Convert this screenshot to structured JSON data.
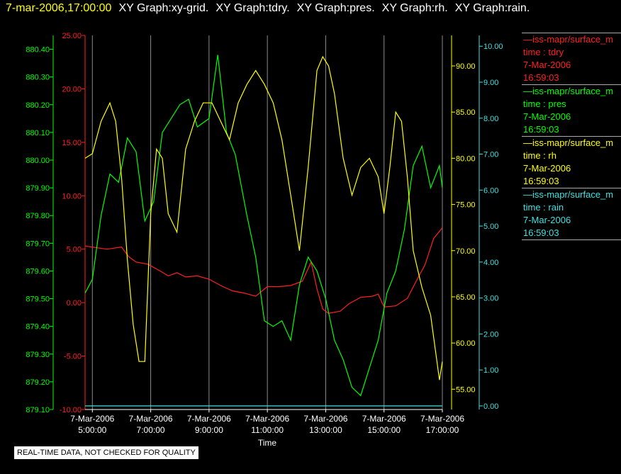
{
  "header": {
    "timestamp": "7-mar-2006,17:00:00",
    "graphs": [
      "XY Graph:xy-grid.",
      "XY Graph:tdry.",
      "XY Graph:pres.",
      "XY Graph:rh.",
      "XY Graph:rain."
    ]
  },
  "legend": [
    {
      "name": "—iss-mapr/surface_m",
      "var": "time : tdry",
      "date": "7-Mar-2006",
      "time": "16:59:03",
      "color": "#ff2020"
    },
    {
      "name": "—iss-mapr/surface_m",
      "var": "time : pres",
      "date": "7-Mar-2006",
      "time": "16:59:03",
      "color": "#00ff00"
    },
    {
      "name": "—iss-mapr/surface_m",
      "var": "time : rh",
      "date": "7-Mar-2006",
      "time": "16:59:03",
      "color": "#ffff00"
    },
    {
      "name": "—iss-mapr/surface_m",
      "var": "time : rain",
      "date": "7-Mar-2006",
      "time": "16:59:03",
      "color": "#40e0e0"
    }
  ],
  "notice": "REAL-TIME DATA, NOT CHECKED FOR QUALITY",
  "chart_data": {
    "type": "line",
    "xlabel": "Time",
    "x_range_hours": [
      4.75,
      17.0
    ],
    "x_ticks": [
      {
        "hour": 5,
        "date": "7-Mar-2006",
        "time": "5:00:00"
      },
      {
        "hour": 7,
        "date": "7-Mar-2006",
        "time": "7:00:00"
      },
      {
        "hour": 9,
        "date": "7-Mar-2006",
        "time": "9:00:00"
      },
      {
        "hour": 11,
        "date": "7-Mar-2006",
        "time": "11:00:00"
      },
      {
        "hour": 13,
        "date": "7-Mar-2006",
        "time": "13:00:00"
      },
      {
        "hour": 15,
        "date": "7-Mar-2006",
        "time": "15:00:00"
      },
      {
        "hour": 17,
        "date": "7-Mar-2006",
        "time": "17:00:00"
      }
    ],
    "grid": "vertical",
    "axes": {
      "pres": {
        "color": "#00ff00",
        "range": [
          879.1,
          880.45
        ],
        "ticks": [
          "880.40",
          "880.30",
          "880.20",
          "880.10",
          "880.00",
          "879.90",
          "879.80",
          "879.70",
          "879.60",
          "879.50",
          "879.40",
          "879.30",
          "879.20",
          "879.10"
        ]
      },
      "tdry": {
        "color": "#ff2020",
        "range": [
          -10,
          25
        ],
        "ticks": [
          "25.00",
          "20.00",
          "15.00",
          "10.00",
          "5.00",
          "0.00",
          "-5.00",
          "-10.00"
        ]
      },
      "rh": {
        "color": "#ffff00",
        "range": [
          52.8,
          93.3
        ],
        "ticks": [
          "90.00",
          "85.00",
          "80.00",
          "75.00",
          "70.00",
          "65.00",
          "60.00",
          "55.00"
        ]
      },
      "rain": {
        "color": "#40e0e0",
        "range": [
          -0.1,
          10.3
        ],
        "ticks": [
          "10.00",
          "9.00",
          "8.00",
          "7.00",
          "6.00",
          "5.00",
          "4.00",
          "3.00",
          "2.00",
          "1.00",
          "0.00"
        ]
      }
    },
    "series": [
      {
        "name": "tdry",
        "axis": "tdry",
        "color": "#ff2020",
        "x": [
          4.75,
          5.5,
          6.0,
          6.25,
          6.5,
          6.9,
          7.3,
          7.6,
          7.9,
          8.2,
          8.6,
          9.0,
          9.4,
          9.8,
          10.2,
          10.6,
          11.0,
          11.4,
          11.8,
          12.2,
          12.5,
          12.7,
          12.9,
          13.1,
          13.5,
          13.8,
          14.2,
          14.6,
          14.8,
          15.0,
          15.4,
          15.8,
          16.1,
          16.4,
          16.7,
          17.0
        ],
        "y": [
          5.3,
          5.0,
          5.2,
          4.3,
          3.8,
          3.6,
          3.0,
          2.5,
          2.8,
          2.4,
          2.5,
          2.2,
          1.6,
          1.1,
          0.9,
          0.6,
          1.5,
          1.5,
          1.6,
          2.0,
          3.8,
          1.3,
          -0.6,
          -1.0,
          -0.8,
          -0.1,
          0.5,
          0.6,
          0.8,
          -0.4,
          -0.3,
          0.4,
          2.0,
          3.5,
          6.0,
          7.0
        ]
      },
      {
        "name": "pres",
        "axis": "pres",
        "color": "#00ff00",
        "x": [
          4.75,
          5.0,
          5.3,
          5.6,
          5.9,
          6.2,
          6.5,
          6.8,
          7.1,
          7.4,
          7.7,
          8.0,
          8.3,
          8.6,
          9.0,
          9.3,
          9.6,
          9.9,
          10.3,
          10.6,
          10.9,
          11.2,
          11.5,
          11.8,
          12.1,
          12.4,
          12.7,
          13.0,
          13.3,
          13.6,
          13.9,
          14.2,
          14.5,
          14.8,
          15.1,
          15.4,
          15.7,
          16.0,
          16.3,
          16.6,
          16.9,
          17.0
        ],
        "y": [
          879.52,
          879.57,
          879.8,
          879.95,
          879.92,
          880.08,
          880.03,
          879.78,
          879.85,
          880.1,
          880.15,
          880.2,
          880.22,
          880.12,
          880.15,
          880.38,
          880.1,
          880.02,
          879.8,
          879.65,
          879.42,
          879.4,
          879.42,
          879.35,
          879.55,
          879.65,
          879.6,
          879.5,
          879.35,
          879.28,
          879.18,
          879.15,
          879.25,
          879.35,
          879.52,
          879.6,
          879.75,
          879.98,
          880.05,
          879.9,
          879.98,
          879.9
        ]
      },
      {
        "name": "rh",
        "axis": "rh",
        "color": "#ffff00",
        "x": [
          4.75,
          5.0,
          5.3,
          5.6,
          5.8,
          6.0,
          6.2,
          6.4,
          6.6,
          6.8,
          7.0,
          7.2,
          7.4,
          7.6,
          7.9,
          8.2,
          8.5,
          8.8,
          9.1,
          9.4,
          9.7,
          10.0,
          10.3,
          10.6,
          10.9,
          11.2,
          11.5,
          11.8,
          12.1,
          12.4,
          12.7,
          12.9,
          13.1,
          13.3,
          13.6,
          13.9,
          14.2,
          14.5,
          14.8,
          15.0,
          15.2,
          15.4,
          15.6,
          15.8,
          16.0,
          16.3,
          16.6,
          16.9,
          17.0
        ],
        "y": [
          80.0,
          80.5,
          84.0,
          86.0,
          84.0,
          78.0,
          69.0,
          62.0,
          58.0,
          58.0,
          74.0,
          81.0,
          80.0,
          74.0,
          72.0,
          81.0,
          84.0,
          86.0,
          86.0,
          84.0,
          82.0,
          86.0,
          88.0,
          89.5,
          88.0,
          86.0,
          82.0,
          76.0,
          70.0,
          79.0,
          89.5,
          91.0,
          90.0,
          87.0,
          80.0,
          76.0,
          79.0,
          80.0,
          78.0,
          74.0,
          79.0,
          85.0,
          84.0,
          78.0,
          70.0,
          66.0,
          63.0,
          56.0,
          58.0
        ]
      },
      {
        "name": "rain",
        "axis": "rain",
        "color": "#40e0e0",
        "x": [
          4.75,
          17.0
        ],
        "y": [
          0.0,
          0.0
        ]
      }
    ]
  }
}
